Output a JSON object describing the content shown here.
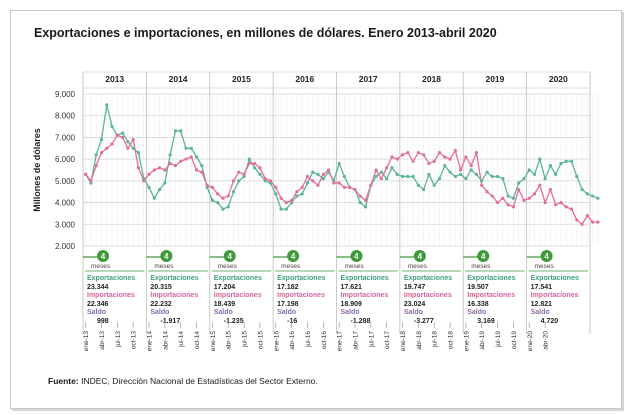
{
  "chart_data": {
    "type": "line",
    "title": "Exportaciones e importaciones, en millones de dólares. Enero 2013-abril 2020",
    "ylabel": "Millones de dólares",
    "ylim": [
      2000,
      9000
    ],
    "yticks": [
      "9.000",
      "8.000",
      "7.000",
      "6.000",
      "5.000",
      "4.000",
      "3.000",
      "2.000"
    ],
    "grid": true,
    "x_tick_labels": [
      "ene-13",
      "abr-13",
      "jul-13",
      "oct-13",
      "ene-14",
      "abr-14",
      "jul-14",
      "oct-14",
      "ene-15",
      "abr-15",
      "jul-15",
      "oct-15",
      "ene-16",
      "abr-16",
      "jul-16",
      "oct-16",
      "ene-17",
      "abr-17",
      "jul-17",
      "oct-17",
      "ene-18",
      "abr-18",
      "jul-18",
      "oct-18",
      "ene-19",
      "abr-19",
      "jul-19",
      "oct-19",
      "ene-20",
      "abr-20"
    ],
    "series": [
      {
        "key": "exportaciones",
        "color": "#5db39a",
        "values": [
          5300,
          4900,
          6200,
          6900,
          8500,
          7500,
          7100,
          7200,
          6800,
          6500,
          6300,
          5100,
          4700,
          4200,
          4600,
          4900,
          6200,
          7300,
          7300,
          6500,
          6500,
          6100,
          5700,
          4700,
          4100,
          4000,
          3700,
          3800,
          4500,
          5000,
          5200,
          6000,
          5600,
          5300,
          5000,
          4900,
          4400,
          3700,
          3700,
          4000,
          4300,
          4400,
          4900,
          5400,
          5300,
          5100,
          5400,
          5000,
          5800,
          5200,
          4700,
          4600,
          4000,
          3800,
          4800,
          5200,
          5400,
          5100,
          5600,
          5300,
          5200,
          5200,
          5200,
          4800,
          4600,
          5300,
          4800,
          5100,
          5700,
          5400,
          5200,
          5300,
          5100,
          5500,
          5300,
          5000,
          5400,
          5200,
          5200,
          5100,
          4300,
          4200,
          4900,
          5100,
          5500,
          5300,
          6000,
          5100,
          5700,
          5300,
          5800,
          5900,
          5900,
          5200,
          4600,
          4400,
          4300,
          4200
        ]
      },
      {
        "key": "importaciones",
        "color": "#e06f9e",
        "values": [
          5300,
          5000,
          5700,
          6300,
          6500,
          6700,
          7100,
          7000,
          6500,
          6900,
          5600,
          5000,
          5300,
          5500,
          5600,
          5500,
          5800,
          5700,
          5900,
          6000,
          6100,
          5500,
          5400,
          4800,
          4700,
          4400,
          4200,
          4300,
          5000,
          5400,
          5300,
          5800,
          5800,
          5600,
          5100,
          5000,
          4700,
          4200,
          4000,
          4100,
          4500,
          4700,
          5200,
          5000,
          4800,
          5300,
          5500,
          4900,
          4900,
          4700,
          4700,
          4600,
          4300,
          4100,
          4800,
          5500,
          5100,
          5600,
          6100,
          6000,
          6200,
          6300,
          5900,
          6300,
          6200,
          5800,
          5900,
          6300,
          6100,
          6000,
          6400,
          5500,
          6100,
          5700,
          6300,
          4800,
          4500,
          4300,
          4000,
          4200,
          3900,
          3800,
          4600,
          4100,
          4200,
          4400,
          4800,
          4000,
          4600,
          3900,
          4000,
          3800,
          3700,
          3200,
          3000,
          3400,
          3100,
          3100
        ]
      }
    ],
    "years": [
      {
        "label": "2013",
        "badge": "4",
        "badge_sub": "meses",
        "exp_label": "Exportaciones",
        "exp": "23.344",
        "imp_label": "Importaciones",
        "imp": "22.346",
        "saldo_label": "Saldo",
        "saldo": "998"
      },
      {
        "label": "2014",
        "badge": "4",
        "badge_sub": "meses",
        "exp_label": "Exportaciones",
        "exp": "20.315",
        "imp_label": "Importaciones",
        "imp": "22.232",
        "saldo_label": "Saldo",
        "saldo": "-1.917"
      },
      {
        "label": "2015",
        "badge": "4",
        "badge_sub": "meses",
        "exp_label": "Exportaciones",
        "exp": "17.204",
        "imp_label": "Importaciones",
        "imp": "18.439",
        "saldo_label": "Saldo",
        "saldo": "-1.235"
      },
      {
        "label": "2016",
        "badge": "4",
        "badge_sub": "meses",
        "exp_label": "Exportaciones",
        "exp": "17.182",
        "imp_label": "Importaciones",
        "imp": "17.198",
        "saldo_label": "Saldo",
        "saldo": "-16"
      },
      {
        "label": "2017",
        "badge": "4",
        "badge_sub": "meses",
        "exp_label": "Exportaciones",
        "exp": "17.621",
        "imp_label": "Importaciones",
        "imp": "18.909",
        "saldo_label": "Saldo",
        "saldo": "-1.288"
      },
      {
        "label": "2018",
        "badge": "4",
        "badge_sub": "meses",
        "exp_label": "Exportaciones",
        "exp": "19.747",
        "imp_label": "Importaciones",
        "imp": "23.024",
        "saldo_label": "Saldo",
        "saldo": "-3.277"
      },
      {
        "label": "2019",
        "badge": "4",
        "badge_sub": "meses",
        "exp_label": "Exportaciones",
        "exp": "19.507",
        "imp_label": "Importaciones",
        "imp": "16.338",
        "saldo_label": "Saldo",
        "saldo": "3.169"
      },
      {
        "label": "2020",
        "badge": "4",
        "badge_sub": "meses",
        "exp_label": "Exportaciones",
        "exp": "17.541",
        "imp_label": "Importaciones",
        "imp": "12.821",
        "saldo_label": "Saldo",
        "saldo": "4.720"
      }
    ],
    "colors": {
      "exp_label": "#3f9f86",
      "imp_label": "#d9649a",
      "saldo_label": "#8a6aa8",
      "badge": "#3f9a3a",
      "grid": "#d4d4d4",
      "year_divider": "#bdbdbd"
    }
  },
  "footer": {
    "source_label": "Fuente:",
    "source_text": "INDEC, Dirección Nacional de Estadísticas del Sector Externo."
  }
}
